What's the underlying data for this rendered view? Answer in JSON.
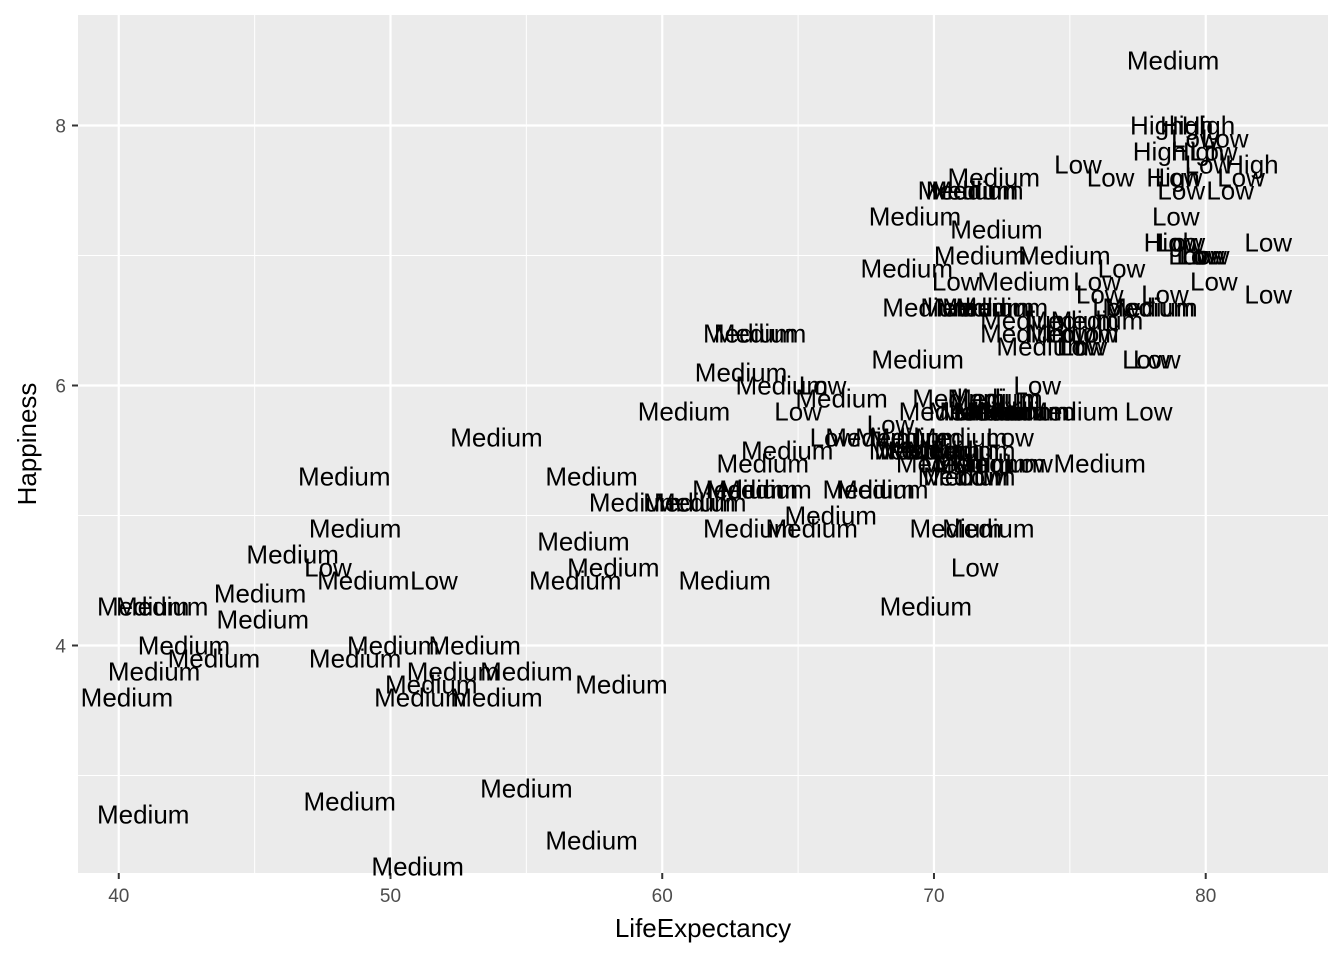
{
  "chart_data": {
    "type": "scatter",
    "mark": "text",
    "xlabel": "LifeExpectancy",
    "ylabel": "Happiness",
    "xlim": [
      38.5,
      84.5
    ],
    "ylim": [
      2.25,
      8.85
    ],
    "xticks_major": [
      40,
      50,
      60,
      70,
      80
    ],
    "xticks_minor": [
      45,
      55,
      65,
      75
    ],
    "yticks_major": [
      4,
      6,
      8
    ],
    "yticks_minor": [
      3,
      5,
      7
    ],
    "grid": true,
    "background": "#ebebeb",
    "grid_color": "#ffffff",
    "points": [
      {
        "x": 80.1,
        "y": 8.0,
        "label": "High"
      },
      {
        "x": 79.3,
        "y": 8.0,
        "label": "High"
      },
      {
        "x": 78.2,
        "y": 8.0,
        "label": "High"
      },
      {
        "x": 79.6,
        "y": 7.9,
        "label": "Low"
      },
      {
        "x": 80.7,
        "y": 7.9,
        "label": "Low"
      },
      {
        "x": 78.3,
        "y": 7.8,
        "label": "High"
      },
      {
        "x": 79.7,
        "y": 7.8,
        "label": "High"
      },
      {
        "x": 80.3,
        "y": 7.8,
        "label": "Low"
      },
      {
        "x": 80.1,
        "y": 7.7,
        "label": "Low"
      },
      {
        "x": 81.7,
        "y": 7.7,
        "label": "High"
      },
      {
        "x": 75.3,
        "y": 7.7,
        "label": "Low"
      },
      {
        "x": 78.8,
        "y": 7.6,
        "label": "High"
      },
      {
        "x": 79.0,
        "y": 7.6,
        "label": "Low"
      },
      {
        "x": 81.3,
        "y": 7.6,
        "label": "Low"
      },
      {
        "x": 76.5,
        "y": 7.6,
        "label": "Low"
      },
      {
        "x": 72.2,
        "y": 7.6,
        "label": "Medium"
      },
      {
        "x": 71.1,
        "y": 7.5,
        "label": "Medium"
      },
      {
        "x": 71.6,
        "y": 7.5,
        "label": "Medium"
      },
      {
        "x": 71.4,
        "y": 7.5,
        "label": "Medium"
      },
      {
        "x": 79.1,
        "y": 7.5,
        "label": "Low"
      },
      {
        "x": 80.9,
        "y": 7.5,
        "label": "Low"
      },
      {
        "x": 78.9,
        "y": 7.3,
        "label": "Low"
      },
      {
        "x": 69.3,
        "y": 7.3,
        "label": "Medium"
      },
      {
        "x": 72.3,
        "y": 7.2,
        "label": "Medium"
      },
      {
        "x": 78.7,
        "y": 7.1,
        "label": "High"
      },
      {
        "x": 79.0,
        "y": 7.1,
        "label": "Low"
      },
      {
        "x": 79.1,
        "y": 7.1,
        "label": "Low"
      },
      {
        "x": 82.3,
        "y": 7.1,
        "label": "Low"
      },
      {
        "x": 79.5,
        "y": 7.0,
        "label": "Low"
      },
      {
        "x": 79.8,
        "y": 7.0,
        "label": "Low"
      },
      {
        "x": 80.0,
        "y": 7.0,
        "label": "Low"
      },
      {
        "x": 79.9,
        "y": 7.0,
        "label": "Low"
      },
      {
        "x": 71.7,
        "y": 7.0,
        "label": "Medium"
      },
      {
        "x": 74.8,
        "y": 7.0,
        "label": "Medium"
      },
      {
        "x": 76.9,
        "y": 6.9,
        "label": "Low"
      },
      {
        "x": 69.0,
        "y": 6.9,
        "label": "Medium"
      },
      {
        "x": 70.8,
        "y": 6.8,
        "label": "Low"
      },
      {
        "x": 73.3,
        "y": 6.8,
        "label": "Medium"
      },
      {
        "x": 76.0,
        "y": 6.8,
        "label": "Low"
      },
      {
        "x": 80.3,
        "y": 6.8,
        "label": "Low"
      },
      {
        "x": 76.1,
        "y": 6.7,
        "label": "Low"
      },
      {
        "x": 78.5,
        "y": 6.7,
        "label": "Low"
      },
      {
        "x": 82.3,
        "y": 6.7,
        "label": "Low"
      },
      {
        "x": 76.7,
        "y": 6.6,
        "label": "Low"
      },
      {
        "x": 77.9,
        "y": 6.6,
        "label": "Medium"
      },
      {
        "x": 78.0,
        "y": 6.6,
        "label": "Medium"
      },
      {
        "x": 69.8,
        "y": 6.6,
        "label": "Medium"
      },
      {
        "x": 71.2,
        "y": 6.6,
        "label": "Medium"
      },
      {
        "x": 71.8,
        "y": 6.6,
        "label": "Medium"
      },
      {
        "x": 72.0,
        "y": 6.6,
        "label": "Medium"
      },
      {
        "x": 72.5,
        "y": 6.6,
        "label": "Medium"
      },
      {
        "x": 73.4,
        "y": 6.5,
        "label": "Medium"
      },
      {
        "x": 75.1,
        "y": 6.5,
        "label": "Medium"
      },
      {
        "x": 76.0,
        "y": 6.5,
        "label": "Medium"
      },
      {
        "x": 75.0,
        "y": 6.4,
        "label": "Low"
      },
      {
        "x": 75.9,
        "y": 6.4,
        "label": "Low"
      },
      {
        "x": 73.4,
        "y": 6.4,
        "label": "Medium"
      },
      {
        "x": 75.1,
        "y": 6.4,
        "label": "Medium"
      },
      {
        "x": 63.2,
        "y": 6.4,
        "label": "Medium"
      },
      {
        "x": 63.6,
        "y": 6.4,
        "label": "Medium"
      },
      {
        "x": 74.0,
        "y": 6.3,
        "label": "Medium"
      },
      {
        "x": 75.4,
        "y": 6.3,
        "label": "Low"
      },
      {
        "x": 75.5,
        "y": 6.3,
        "label": "Low"
      },
      {
        "x": 77.8,
        "y": 6.2,
        "label": "Low"
      },
      {
        "x": 78.2,
        "y": 6.2,
        "label": "Low"
      },
      {
        "x": 69.4,
        "y": 6.2,
        "label": "Medium"
      },
      {
        "x": 62.9,
        "y": 6.1,
        "label": "Medium"
      },
      {
        "x": 64.4,
        "y": 6.0,
        "label": "Medium"
      },
      {
        "x": 65.9,
        "y": 6.0,
        "label": "Low"
      },
      {
        "x": 73.8,
        "y": 6.0,
        "label": "Low"
      },
      {
        "x": 66.6,
        "y": 5.9,
        "label": "Medium"
      },
      {
        "x": 70.9,
        "y": 5.9,
        "label": "Medium"
      },
      {
        "x": 72.2,
        "y": 5.9,
        "label": "Medium"
      },
      {
        "x": 72.3,
        "y": 5.9,
        "label": "Medium"
      },
      {
        "x": 72.5,
        "y": 5.8,
        "label": "Medium"
      },
      {
        "x": 73.3,
        "y": 5.8,
        "label": "Medium"
      },
      {
        "x": 60.8,
        "y": 5.8,
        "label": "Medium"
      },
      {
        "x": 65.0,
        "y": 5.8,
        "label": "Low"
      },
      {
        "x": 70.4,
        "y": 5.8,
        "label": "Medium"
      },
      {
        "x": 71.5,
        "y": 5.8,
        "label": "Medium"
      },
      {
        "x": 71.9,
        "y": 5.8,
        "label": "Medium"
      },
      {
        "x": 72.4,
        "y": 5.8,
        "label": "Medium"
      },
      {
        "x": 72.9,
        "y": 5.8,
        "label": "Medium"
      },
      {
        "x": 73.5,
        "y": 5.8,
        "label": "Medium"
      },
      {
        "x": 75.1,
        "y": 5.8,
        "label": "Medium"
      },
      {
        "x": 77.9,
        "y": 5.8,
        "label": "Low"
      },
      {
        "x": 68.4,
        "y": 5.7,
        "label": "Low"
      },
      {
        "x": 53.9,
        "y": 5.6,
        "label": "Medium"
      },
      {
        "x": 66.3,
        "y": 5.6,
        "label": "Low"
      },
      {
        "x": 67.7,
        "y": 5.6,
        "label": "Medium"
      },
      {
        "x": 68.8,
        "y": 5.6,
        "label": "Medium"
      },
      {
        "x": 69.3,
        "y": 5.6,
        "label": "Medium"
      },
      {
        "x": 71.0,
        "y": 5.6,
        "label": "Medium"
      },
      {
        "x": 72.8,
        "y": 5.6,
        "label": "Low"
      },
      {
        "x": 69.3,
        "y": 5.5,
        "label": "Medium"
      },
      {
        "x": 70.0,
        "y": 5.5,
        "label": "Medium"
      },
      {
        "x": 70.7,
        "y": 5.5,
        "label": "Medium"
      },
      {
        "x": 71.3,
        "y": 5.5,
        "label": "Medium"
      },
      {
        "x": 69.5,
        "y": 5.5,
        "label": "Medium"
      },
      {
        "x": 69.7,
        "y": 5.5,
        "label": "Medium"
      },
      {
        "x": 64.6,
        "y": 5.5,
        "label": "Medium"
      },
      {
        "x": 63.7,
        "y": 5.4,
        "label": "Medium"
      },
      {
        "x": 70.3,
        "y": 5.4,
        "label": "Medium"
      },
      {
        "x": 71.2,
        "y": 5.4,
        "label": "Medium"
      },
      {
        "x": 71.7,
        "y": 5.4,
        "label": "Medium"
      },
      {
        "x": 72.4,
        "y": 5.4,
        "label": "Medium"
      },
      {
        "x": 73.5,
        "y": 5.4,
        "label": "Low"
      },
      {
        "x": 76.1,
        "y": 5.4,
        "label": "Medium"
      },
      {
        "x": 48.3,
        "y": 5.3,
        "label": "Medium"
      },
      {
        "x": 57.4,
        "y": 5.3,
        "label": "Medium"
      },
      {
        "x": 71.1,
        "y": 5.3,
        "label": "Medium"
      },
      {
        "x": 71.3,
        "y": 5.3,
        "label": "Medium"
      },
      {
        "x": 71.7,
        "y": 5.3,
        "label": "Low"
      },
      {
        "x": 62.8,
        "y": 5.2,
        "label": "Medium"
      },
      {
        "x": 63.3,
        "y": 5.2,
        "label": "Medium"
      },
      {
        "x": 63.8,
        "y": 5.2,
        "label": "Medium"
      },
      {
        "x": 67.6,
        "y": 5.2,
        "label": "Medium"
      },
      {
        "x": 68.1,
        "y": 5.2,
        "label": "Medium"
      },
      {
        "x": 59.0,
        "y": 5.1,
        "label": "Medium"
      },
      {
        "x": 61.0,
        "y": 5.1,
        "label": "Medium"
      },
      {
        "x": 61.4,
        "y": 5.1,
        "label": "Medium"
      },
      {
        "x": 66.2,
        "y": 5.0,
        "label": "Medium"
      },
      {
        "x": 48.7,
        "y": 4.9,
        "label": "Medium"
      },
      {
        "x": 63.2,
        "y": 4.9,
        "label": "Medium"
      },
      {
        "x": 65.5,
        "y": 4.9,
        "label": "Medium"
      },
      {
        "x": 70.8,
        "y": 4.9,
        "label": "Medium"
      },
      {
        "x": 72.0,
        "y": 4.9,
        "label": "Medium"
      },
      {
        "x": 57.1,
        "y": 4.8,
        "label": "Medium"
      },
      {
        "x": 46.4,
        "y": 4.7,
        "label": "Medium"
      },
      {
        "x": 47.7,
        "y": 4.6,
        "label": "Low"
      },
      {
        "x": 58.2,
        "y": 4.6,
        "label": "Medium"
      },
      {
        "x": 71.5,
        "y": 4.6,
        "label": "Low"
      },
      {
        "x": 49.0,
        "y": 4.5,
        "label": "Medium"
      },
      {
        "x": 51.6,
        "y": 4.5,
        "label": "Low"
      },
      {
        "x": 56.8,
        "y": 4.5,
        "label": "Medium"
      },
      {
        "x": 62.3,
        "y": 4.5,
        "label": "Medium"
      },
      {
        "x": 45.2,
        "y": 4.4,
        "label": "Medium"
      },
      {
        "x": 40.9,
        "y": 4.3,
        "label": "Medium"
      },
      {
        "x": 41.6,
        "y": 4.3,
        "label": "Medium"
      },
      {
        "x": 69.7,
        "y": 4.3,
        "label": "Medium"
      },
      {
        "x": 45.3,
        "y": 4.2,
        "label": "Medium"
      },
      {
        "x": 42.4,
        "y": 4.0,
        "label": "Medium"
      },
      {
        "x": 50.1,
        "y": 4.0,
        "label": "Medium"
      },
      {
        "x": 53.1,
        "y": 4.0,
        "label": "Medium"
      },
      {
        "x": 43.5,
        "y": 3.9,
        "label": "Medium"
      },
      {
        "x": 48.7,
        "y": 3.9,
        "label": "Medium"
      },
      {
        "x": 41.3,
        "y": 3.8,
        "label": "Medium"
      },
      {
        "x": 52.3,
        "y": 3.8,
        "label": "Medium"
      },
      {
        "x": 55.0,
        "y": 3.8,
        "label": "Medium"
      },
      {
        "x": 51.5,
        "y": 3.7,
        "label": "Medium"
      },
      {
        "x": 58.5,
        "y": 3.7,
        "label": "Medium"
      },
      {
        "x": 40.3,
        "y": 3.6,
        "label": "Medium"
      },
      {
        "x": 51.1,
        "y": 3.6,
        "label": "Medium"
      },
      {
        "x": 53.9,
        "y": 3.6,
        "label": "Medium"
      },
      {
        "x": 55.0,
        "y": 2.9,
        "label": "Medium"
      },
      {
        "x": 48.5,
        "y": 2.8,
        "label": "Medium"
      },
      {
        "x": 40.9,
        "y": 2.7,
        "label": "Medium"
      },
      {
        "x": 57.4,
        "y": 2.5,
        "label": "Medium"
      },
      {
        "x": 51.0,
        "y": 2.3,
        "label": "Medium"
      },
      {
        "x": 78.8,
        "y": 8.5,
        "label": "Medium"
      }
    ]
  }
}
